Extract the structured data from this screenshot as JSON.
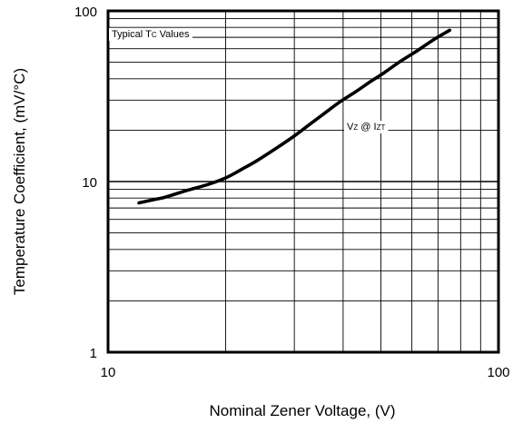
{
  "chart_data": {
    "type": "line",
    "title": "",
    "xlabel": "Nominal Zener Voltage, (V)",
    "ylabel": "Temperature Coefficient, (mV/°C)",
    "x_scale": "log",
    "y_scale": "log",
    "xlim": [
      10,
      100
    ],
    "ylim": [
      1,
      100
    ],
    "x_ticks": [
      10,
      100
    ],
    "y_ticks": [
      1,
      10,
      100
    ],
    "x_tick_labels": [
      "10",
      "100"
    ],
    "y_tick_labels": [
      "1",
      "10",
      "100"
    ],
    "grid": true,
    "legend": "none",
    "annotations": [
      {
        "main": "Typical T",
        "sub": "C",
        "rest": " Values"
      },
      {
        "main": "V",
        "sub": "Z",
        "mid": " @ I",
        "sub2": "ZT"
      }
    ],
    "series": [
      {
        "x": [
          12,
          13,
          14,
          15,
          16,
          18,
          20,
          22,
          24,
          27,
          30,
          33,
          36,
          39,
          43,
          47,
          51,
          56,
          62,
          68,
          75
        ],
        "y": [
          7.5,
          7.8,
          8.1,
          8.5,
          8.9,
          9.6,
          10.5,
          11.8,
          13.2,
          15.7,
          18.5,
          21.8,
          25.3,
          29,
          33.5,
          38.5,
          43.5,
          50.5,
          58.5,
          67.5,
          77
        ]
      }
    ]
  }
}
